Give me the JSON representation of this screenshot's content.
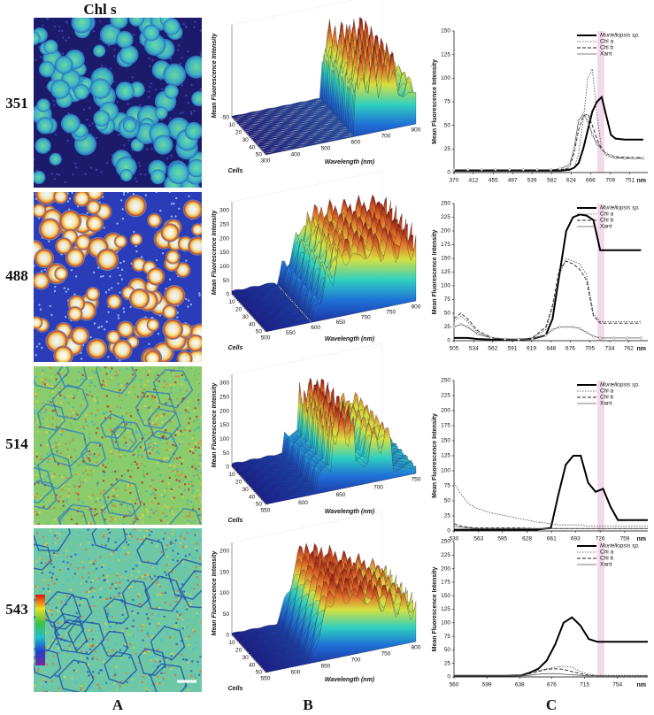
{
  "figure": {
    "header": "Chl s",
    "rows": [
      "351",
      "488",
      "514",
      "543"
    ],
    "columns": [
      "A",
      "B",
      "C"
    ]
  },
  "surfaces": [
    {
      "zlabel": "Mean Fluorescence Intensity",
      "ylabel": "Cells",
      "xlabel": "Wavelength (nm)",
      "zticks": [
        -50
      ],
      "cellticks": [
        10,
        20,
        30,
        40,
        50
      ],
      "wlticks": [
        300,
        400,
        500,
        600,
        700,
        800
      ]
    },
    {
      "zlabel": "Mean Fluorescence Intensity",
      "ylabel": "Cells",
      "xlabel": "Wavelength (nm)",
      "zticks": [
        0,
        50,
        100,
        150,
        200,
        250,
        300
      ],
      "cellticks": [
        10,
        20,
        30,
        40,
        50
      ],
      "wlticks": [
        500,
        550,
        600,
        650,
        700,
        750,
        800
      ]
    },
    {
      "zlabel": "Mean Fluorescence Intensity",
      "ylabel": "Cells",
      "xlabel": "Wavelength (nm)",
      "zticks": [
        0,
        50,
        100,
        150,
        200,
        250,
        300
      ],
      "cellticks": [
        10,
        20,
        30,
        40,
        50
      ],
      "wlticks": [
        550,
        600,
        650,
        700,
        750
      ]
    },
    {
      "zlabel": "Mean Fluorescence Intensity",
      "ylabel": "Cells",
      "xlabel": "Wavelength (nm)",
      "zticks": [
        0,
        50,
        100,
        150,
        200
      ],
      "cellticks": [
        10,
        20,
        30,
        40,
        50
      ],
      "wlticks": [
        550,
        600,
        650,
        700,
        750,
        800
      ]
    }
  ],
  "chart_data": [
    {
      "type": "line",
      "ylabel": "Mean Fluorescence Intensity",
      "xunit": "nm",
      "legend": "upper right",
      "x": [
        370,
        400,
        430,
        460,
        490,
        520,
        550,
        580,
        600,
        620,
        630,
        640,
        650,
        660,
        670,
        680,
        690,
        700,
        710,
        720,
        740,
        760,
        780
      ],
      "xlim": [
        370,
        790
      ],
      "xticks": [
        370,
        412,
        455,
        497,
        539,
        582,
        624,
        666,
        709,
        751
      ],
      "ylim": [
        0,
        150
      ],
      "yticks": [
        0,
        25,
        50,
        75,
        100,
        125,
        150
      ],
      "series": [
        {
          "name": "Muriellopsis sp.",
          "color": "#000000",
          "width": 2,
          "dash": "none",
          "values": [
            2,
            2,
            2,
            2,
            2,
            2,
            2,
            2,
            2,
            3,
            5,
            10,
            25,
            45,
            65,
            75,
            80,
            60,
            40,
            36,
            35,
            35,
            35
          ]
        },
        {
          "name": "Chl a",
          "color": "#444444",
          "width": 0.8,
          "dash": "1.5,1.5",
          "values": [
            1,
            1,
            1,
            1,
            1,
            1,
            1,
            1,
            1,
            2,
            5,
            20,
            55,
            100,
            110,
            60,
            25,
            18,
            16,
            15,
            15,
            15,
            15
          ]
        },
        {
          "name": "Chl b",
          "color": "#222222",
          "width": 0.9,
          "dash": "4,2",
          "values": [
            3,
            3,
            3,
            3,
            3,
            3,
            3,
            3,
            3,
            5,
            20,
            45,
            60,
            62,
            50,
            35,
            25,
            20,
            18,
            17,
            16,
            16,
            16
          ]
        },
        {
          "name": "Xant",
          "color": "#555555",
          "width": 0.8,
          "dash": "none",
          "marker": "diamond",
          "values": [
            3,
            3,
            3,
            3,
            3,
            3,
            3,
            3,
            4,
            8,
            25,
            55,
            62,
            55,
            40,
            30,
            25,
            20,
            18,
            16,
            15,
            15,
            15
          ]
        }
      ]
    },
    {
      "type": "line",
      "ylabel": "Mean Fluorescence Intensity",
      "xunit": "nm",
      "legend": "upper right",
      "x": [
        505,
        515,
        525,
        540,
        560,
        580,
        600,
        620,
        640,
        650,
        660,
        670,
        680,
        690,
        700,
        710,
        720,
        740,
        760,
        780
      ],
      "xlim": [
        505,
        790
      ],
      "xticks": [
        505,
        534,
        562,
        591,
        619,
        648,
        676,
        705,
        734,
        762
      ],
      "ylim": [
        0,
        250
      ],
      "yticks": [
        0,
        25,
        50,
        75,
        100,
        125,
        150,
        175,
        200,
        225,
        250
      ],
      "series": [
        {
          "name": "Muriellopsis sp.",
          "color": "#000000",
          "width": 2,
          "dash": "none",
          "values": [
            5,
            5,
            5,
            3,
            2,
            2,
            2,
            3,
            10,
            40,
            120,
            200,
            225,
            230,
            228,
            220,
            165,
            165,
            165,
            165
          ]
        },
        {
          "name": "Chl a",
          "color": "#444444",
          "width": 0.8,
          "dash": "1.5,1.5",
          "values": [
            35,
            45,
            35,
            15,
            5,
            3,
            2,
            5,
            20,
            60,
            120,
            150,
            145,
            140,
            120,
            50,
            35,
            35,
            35,
            35
          ]
        },
        {
          "name": "Chl b",
          "color": "#222222",
          "width": 0.9,
          "dash": "4,2",
          "values": [
            40,
            50,
            40,
            18,
            6,
            3,
            2,
            5,
            25,
            65,
            130,
            145,
            140,
            130,
            110,
            45,
            32,
            32,
            32,
            32
          ]
        },
        {
          "name": "Xant",
          "color": "#555555",
          "width": 0.8,
          "dash": "none",
          "marker": "diamond",
          "values": [
            25,
            30,
            25,
            12,
            5,
            3,
            2,
            3,
            10,
            20,
            25,
            25,
            25,
            22,
            15,
            8,
            5,
            5,
            5,
            5
          ]
        }
      ]
    },
    {
      "type": "line",
      "ylabel": "Mean Fluorescence Intensity",
      "xunit": "nm",
      "legend": "upper right",
      "x": [
        530,
        540,
        550,
        560,
        580,
        600,
        620,
        640,
        660,
        670,
        680,
        690,
        700,
        710,
        720,
        730,
        740,
        750,
        770,
        790
      ],
      "xlim": [
        530,
        790
      ],
      "xticks": [
        530,
        563,
        595,
        628,
        661,
        693,
        726,
        759
      ],
      "ylim": [
        0,
        250
      ],
      "yticks": [
        0,
        25,
        50,
        75,
        100,
        125,
        150,
        175,
        200,
        225,
        250
      ],
      "series": [
        {
          "name": "Muriellopsis sp.",
          "color": "#000000",
          "width": 2,
          "dash": "none",
          "values": [
            2,
            2,
            2,
            2,
            2,
            2,
            2,
            2,
            5,
            60,
            110,
            125,
            125,
            80,
            65,
            70,
            40,
            18,
            18,
            18
          ]
        },
        {
          "name": "Chl a",
          "color": "#444444",
          "width": 0.8,
          "dash": "1.5,1.5",
          "values": [
            80,
            60,
            45,
            38,
            30,
            25,
            20,
            15,
            12,
            10,
            10,
            10,
            10,
            8,
            8,
            8,
            8,
            8,
            8,
            8
          ]
        },
        {
          "name": "Chl b",
          "color": "#222222",
          "width": 0.9,
          "dash": "4,2",
          "values": [
            12,
            8,
            6,
            5,
            5,
            5,
            5,
            4,
            4,
            4,
            4,
            4,
            4,
            4,
            4,
            4,
            4,
            4,
            4,
            4
          ]
        },
        {
          "name": "Xant",
          "color": "#555555",
          "width": 0.8,
          "dash": "none",
          "values": [
            8,
            6,
            5,
            4,
            4,
            4,
            4,
            4,
            4,
            4,
            4,
            4,
            4,
            4,
            4,
            4,
            4,
            4,
            4,
            4
          ]
        }
      ]
    },
    {
      "type": "line",
      "ylabel": "Mean Fluorescence Intensity",
      "xunit": "nm",
      "legend": "upper right",
      "x": [
        560,
        580,
        600,
        620,
        640,
        650,
        660,
        670,
        680,
        690,
        700,
        710,
        720,
        730,
        750,
        770,
        790
      ],
      "xlim": [
        560,
        790
      ],
      "xticks": [
        560,
        599,
        638,
        676,
        715,
        754
      ],
      "ylim": [
        0,
        250
      ],
      "yticks": [
        0,
        25,
        50,
        75,
        100,
        125,
        150,
        175,
        200,
        225,
        250
      ],
      "series": [
        {
          "name": "Muriellopsis sp.",
          "color": "#000000",
          "width": 2,
          "dash": "none",
          "values": [
            2,
            2,
            2,
            2,
            3,
            8,
            15,
            30,
            60,
            100,
            110,
            95,
            70,
            65,
            65,
            65,
            65
          ]
        },
        {
          "name": "Chl a",
          "color": "#444444",
          "width": 0.8,
          "dash": "1.5,1.5",
          "values": [
            2,
            2,
            2,
            2,
            3,
            8,
            12,
            15,
            18,
            20,
            18,
            10,
            5,
            3,
            3,
            3,
            3
          ]
        },
        {
          "name": "Chl b",
          "color": "#222222",
          "width": 0.9,
          "dash": "4,2",
          "values": [
            2,
            2,
            2,
            2,
            3,
            6,
            10,
            14,
            15,
            14,
            10,
            6,
            3,
            2,
            2,
            2,
            2
          ]
        },
        {
          "name": "Xant",
          "color": "#555555",
          "width": 0.8,
          "dash": "none",
          "values": [
            2,
            2,
            2,
            2,
            2,
            3,
            5,
            6,
            6,
            5,
            4,
            3,
            2,
            2,
            2,
            2,
            2
          ]
        }
      ]
    }
  ]
}
